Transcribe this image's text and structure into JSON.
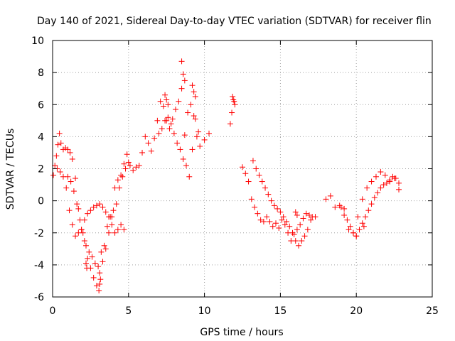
{
  "chart_data": {
    "type": "scatter",
    "title": "Day 140 of 2021, Sidereal Day-to-day VTEC variation (SDTVAR) for receiver flin",
    "xlabel": "GPS time / hours",
    "ylabel": "SDTVAR / TECUs",
    "xlim": [
      0,
      25
    ],
    "ylim": [
      -6,
      10
    ],
    "xticks": [
      "0",
      "5",
      "10",
      "15",
      "20",
      "25"
    ],
    "yticks": [
      "-6",
      "-4",
      "-2",
      "0",
      "2",
      "4",
      "6",
      "8",
      "10"
    ],
    "grid": true,
    "marker": "+",
    "color": "#ff0000",
    "series": [
      {
        "name": "SDTVAR",
        "x": [
          0.05,
          0.15,
          0.25,
          0.35,
          0.45,
          0.55,
          0.7,
          0.85,
          1.0,
          1.15,
          1.3,
          1.5,
          1.7,
          1.9,
          2.1,
          2.3,
          2.5,
          2.7,
          2.9,
          3.1,
          3.3,
          3.5,
          3.7,
          3.9,
          4.1,
          4.3,
          4.5,
          4.7,
          4.9,
          5.1,
          5.3,
          5.5,
          5.7,
          5.9,
          6.1,
          6.3,
          6.5,
          6.7,
          6.9,
          7.1,
          7.3,
          7.5,
          7.7,
          7.9,
          8.1,
          8.3,
          8.5,
          8.7,
          8.9,
          9.1,
          9.3,
          9.5,
          9.7,
          10.0,
          10.3,
          11.7,
          11.8,
          11.9,
          12.0,
          12.5,
          12.7,
          12.9,
          13.1,
          13.3,
          13.5,
          13.7,
          13.9,
          14.1,
          14.3,
          14.5,
          14.7,
          14.9,
          15.1,
          15.3,
          15.5,
          15.7,
          15.9,
          16.1,
          16.3,
          16.5,
          16.7,
          16.9,
          17.1,
          17.3,
          18.0,
          18.3,
          18.6,
          18.9,
          19.2,
          19.5,
          19.8,
          20.1,
          20.4,
          20.7,
          21.0,
          21.3,
          21.6,
          21.9,
          22.2,
          22.5,
          22.8,
          0.3,
          0.5,
          0.7,
          0.9,
          1.1,
          1.3,
          1.5,
          1.7,
          1.9,
          2.1,
          2.3,
          2.5,
          2.7,
          2.9,
          3.1,
          3.3,
          3.5,
          3.7,
          3.9,
          4.1,
          4.3,
          4.5,
          4.7,
          1.0,
          1.2,
          1.4,
          1.6,
          1.8,
          2.0,
          2.2,
          2.4,
          2.6,
          2.8,
          3.0,
          3.2,
          3.4,
          3.6,
          3.8,
          4.0,
          4.2,
          4.4,
          4.6,
          4.8,
          5.0,
          7.0,
          7.2,
          7.4,
          7.6,
          7.8,
          8.0,
          8.2,
          8.4,
          8.6,
          8.8,
          9.0,
          9.2,
          9.4,
          9.6,
          13.2,
          13.4,
          13.6,
          13.8,
          14.0,
          14.2,
          14.4,
          14.6,
          14.8,
          15.0,
          15.2,
          15.4,
          15.6,
          15.8,
          16.0,
          16.2,
          16.4,
          16.6,
          16.8,
          17.0,
          19.0,
          19.2,
          19.4,
          19.6,
          19.8,
          20.0,
          20.2,
          20.4,
          20.6,
          20.8,
          21.0,
          21.2,
          21.4,
          21.6,
          21.8,
          22.0,
          22.2,
          22.4,
          22.6,
          22.8,
          8.5,
          8.6,
          8.7,
          9.2,
          9.3,
          9.4,
          7.4,
          7.5,
          7.6,
          11.85,
          11.95,
          3.05,
          3.1,
          3.15,
          2.2,
          2.25,
          16.0,
          16.1,
          20.0,
          20.5
        ],
        "y": [
          1.6,
          2.2,
          2.8,
          3.5,
          4.2,
          3.6,
          3.2,
          3.3,
          3.2,
          3.0,
          2.6,
          1.4,
          -0.5,
          -1.8,
          -2.5,
          -3.6,
          -4.2,
          -4.8,
          -5.3,
          -4.5,
          -3.8,
          -3.0,
          -2.0,
          -1.0,
          0.8,
          1.3,
          1.6,
          2.3,
          2.9,
          2.2,
          1.9,
          2.1,
          2.2,
          3.0,
          4.0,
          3.6,
          3.1,
          3.9,
          5.0,
          6.2,
          5.9,
          5.0,
          4.5,
          5.1,
          5.7,
          6.2,
          7.0,
          4.1,
          5.5,
          6.0,
          5.3,
          4.0,
          3.4,
          3.8,
          4.2,
          4.8,
          5.5,
          6.3,
          6.0,
          2.1,
          1.7,
          1.2,
          0.1,
          -0.4,
          -0.8,
          -1.2,
          -1.3,
          -1.0,
          -1.3,
          -1.6,
          -1.4,
          -1.7,
          -1.2,
          -1.5,
          -2.0,
          -2.5,
          -2.1,
          -1.8,
          -1.5,
          -1.1,
          -0.8,
          -0.9,
          -1.0,
          -1.0,
          0.1,
          0.3,
          -0.4,
          -0.3,
          -0.5,
          -1.8,
          -2.0,
          -1.0,
          0.1,
          0.8,
          1.2,
          1.5,
          1.8,
          1.6,
          1.2,
          1.4,
          0.7,
          2.0,
          1.8,
          1.5,
          0.8,
          -0.6,
          -1.5,
          -2.2,
          -2.0,
          -1.8,
          -1.2,
          -0.8,
          -0.6,
          -0.4,
          -0.3,
          -0.2,
          -0.4,
          -0.7,
          -1.0,
          -1.5,
          -2.0,
          -1.8,
          -1.5,
          -1.8,
          1.5,
          1.2,
          0.6,
          -0.2,
          -1.2,
          -2.0,
          -2.8,
          -3.2,
          -3.5,
          -3.9,
          -4.1,
          -3.2,
          -2.8,
          -1.6,
          -1.0,
          -0.6,
          -0.2,
          0.8,
          1.5,
          2.0,
          2.4,
          4.2,
          4.5,
          5.0,
          5.2,
          4.8,
          4.2,
          3.6,
          3.2,
          2.6,
          2.2,
          1.5,
          3.2,
          5.1,
          4.3,
          2.5,
          2.0,
          1.6,
          1.2,
          0.8,
          0.4,
          0.0,
          -0.3,
          -0.5,
          -0.7,
          -1.0,
          -1.3,
          -1.6,
          -2.0,
          -2.5,
          -2.8,
          -2.5,
          -2.2,
          -1.8,
          -1.2,
          -0.4,
          -0.9,
          -1.2,
          -1.6,
          -2.0,
          -2.2,
          -1.8,
          -1.4,
          -1.0,
          -0.6,
          -0.2,
          0.2,
          0.5,
          0.8,
          1.0,
          1.1,
          1.3,
          1.5,
          1.4,
          1.1,
          8.7,
          7.9,
          7.5,
          7.2,
          6.8,
          6.5,
          6.6,
          6.3,
          6.0,
          6.5,
          6.2,
          -5.6,
          -5.2,
          -4.9,
          -3.9,
          -4.2,
          -0.7,
          -0.9,
          -2.2,
          -1.6
        ]
      }
    ]
  }
}
